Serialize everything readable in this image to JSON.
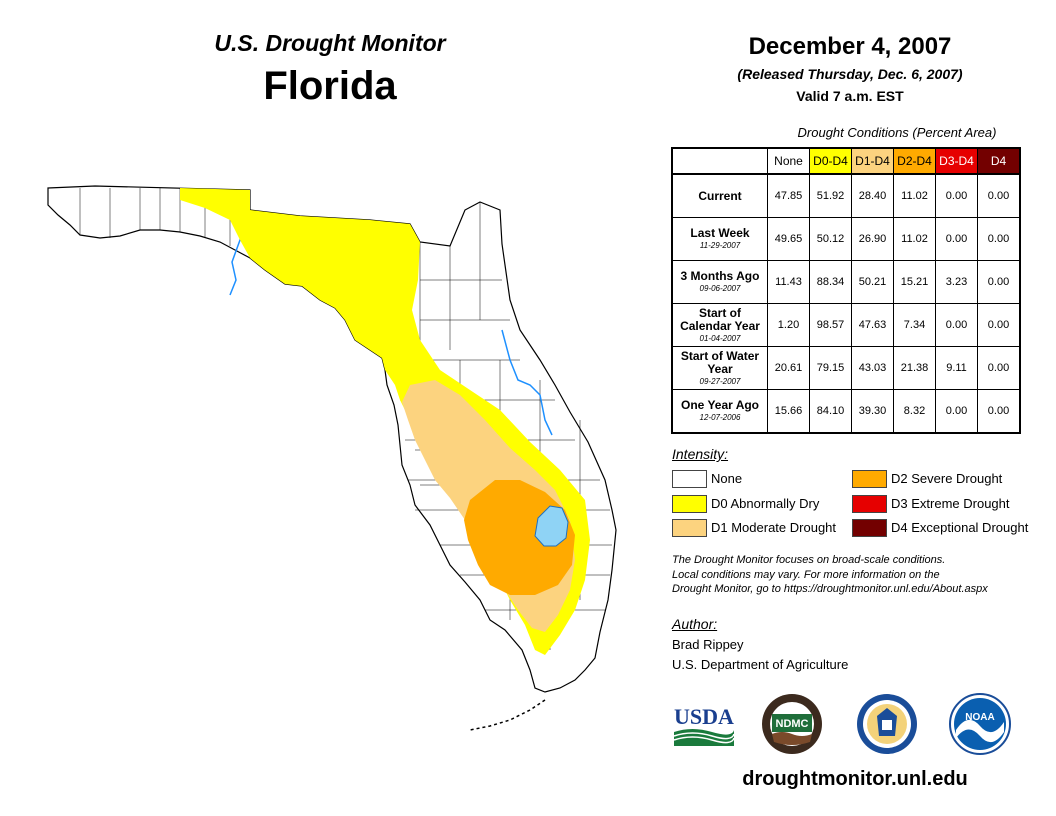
{
  "header": {
    "monitor_title": "U.S. Drought Monitor",
    "state": "Florida",
    "date": "December 4, 2007",
    "released": "(Released Thursday, Dec. 6, 2007)",
    "valid": "Valid 7 a.m. EST"
  },
  "table": {
    "caption": "Drought Conditions (Percent Area)",
    "columns": [
      "None",
      "D0-D4",
      "D1-D4",
      "D2-D4",
      "D3-D4",
      "D4"
    ],
    "rows": [
      {
        "label": "Current",
        "date": "",
        "values": [
          "47.85",
          "51.92",
          "28.40",
          "11.02",
          "0.00",
          "0.00"
        ]
      },
      {
        "label": "Last Week",
        "date": "11-29-2007",
        "values": [
          "49.65",
          "50.12",
          "26.90",
          "11.02",
          "0.00",
          "0.00"
        ]
      },
      {
        "label": "3 Months Ago",
        "date": "09-06-2007",
        "values": [
          "11.43",
          "88.34",
          "50.21",
          "15.21",
          "3.23",
          "0.00"
        ]
      },
      {
        "label": "Start of Calendar Year",
        "date": "01-04-2007",
        "values": [
          "1.20",
          "98.57",
          "47.63",
          "7.34",
          "0.00",
          "0.00"
        ]
      },
      {
        "label": "Start of Water Year",
        "date": "09-27-2007",
        "values": [
          "20.61",
          "79.15",
          "43.03",
          "21.38",
          "9.11",
          "0.00"
        ]
      },
      {
        "label": "One Year Ago",
        "date": "12-07-2006",
        "values": [
          "15.66",
          "84.10",
          "39.30",
          "8.32",
          "0.00",
          "0.00"
        ]
      }
    ]
  },
  "legend": {
    "heading": "Intensity:",
    "items": [
      {
        "label": "None",
        "color": "#ffffff"
      },
      {
        "label": "D0 Abnormally Dry",
        "color": "#ffff00"
      },
      {
        "label": "D1 Moderate Drought",
        "color": "#fcd37f"
      },
      {
        "label": "D2 Severe Drought",
        "color": "#ffaa00"
      },
      {
        "label": "D3 Extreme Drought",
        "color": "#e60000"
      },
      {
        "label": "D4 Exceptional Drought",
        "color": "#730000"
      }
    ]
  },
  "note": {
    "line1": "The Drought Monitor focuses on broad-scale conditions.",
    "line2": "Local conditions may vary. For more information on the",
    "line3": "Drought Monitor, go to https://droughtmonitor.unl.edu/About.aspx"
  },
  "author": {
    "heading": "Author:",
    "name": "Brad Rippey",
    "org": "U.S. Department of Agriculture"
  },
  "logos": {
    "usda": "USDA",
    "ndmc": "NDMC",
    "noaa": "NOAA"
  },
  "website": "droughtmonitor.unl.edu"
}
